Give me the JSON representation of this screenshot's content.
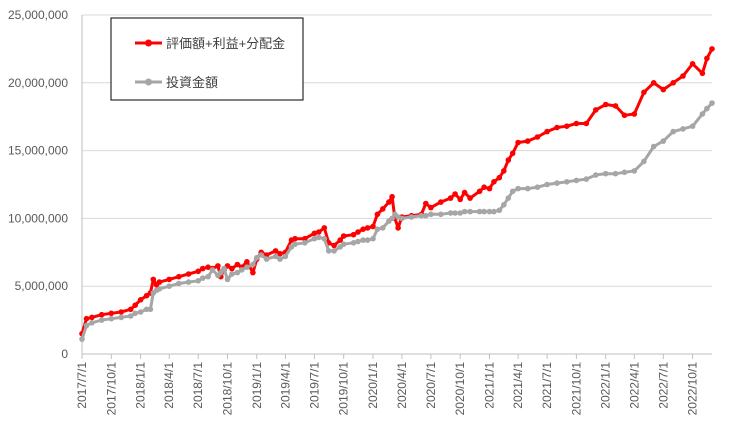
{
  "chart_data": {
    "type": "line",
    "title": "",
    "xlabel": "",
    "ylabel": "",
    "ylim": [
      0,
      25000000
    ],
    "yticks": [
      0,
      5000000,
      10000000,
      15000000,
      20000000,
      25000000
    ],
    "ytick_labels": [
      "0",
      "5,000,000",
      "10,000,000",
      "15,000,000",
      "20,000,000",
      "25,000,000"
    ],
    "x_tick_labels": [
      "2017/7/1",
      "2017/10/1",
      "2018/1/1",
      "2018/4/1",
      "2018/7/1",
      "2018/10/1",
      "2019/1/1",
      "2019/4/1",
      "2019/7/1",
      "2019/10/1",
      "2020/1/1",
      "2020/4/1",
      "2020/7/1",
      "2020/10/1",
      "2021/1/1",
      "2021/4/1",
      "2021/7/1",
      "2021/10/1",
      "2022/1/1",
      "2022/4/1",
      "2022/7/1",
      "2022/10/1"
    ],
    "x_start": "2017/7/1",
    "x_end": "2022/12/1",
    "grid": true,
    "legend_position": "top-left",
    "colors": {
      "valuation": "#ff0000",
      "investment": "#a6a6a6"
    },
    "series": [
      {
        "name": "評価額+利益+分配金",
        "color": "#ff0000",
        "points": [
          [
            "2017/7/1",
            1500000
          ],
          [
            "2017/7/15",
            2600000
          ],
          [
            "2017/8/1",
            2700000
          ],
          [
            "2017/9/1",
            2900000
          ],
          [
            "2017/10/1",
            3000000
          ],
          [
            "2017/11/1",
            3100000
          ],
          [
            "2017/12/1",
            3300000
          ],
          [
            "2017/12/15",
            3600000
          ],
          [
            "2018/1/1",
            4000000
          ],
          [
            "2018/1/20",
            4300000
          ],
          [
            "2018/2/1",
            4500000
          ],
          [
            "2018/2/10",
            5500000
          ],
          [
            "2018/2/20",
            5100000
          ],
          [
            "2018/3/1",
            5300000
          ],
          [
            "2018/4/1",
            5500000
          ],
          [
            "2018/5/1",
            5700000
          ],
          [
            "2018/6/1",
            5900000
          ],
          [
            "2018/7/1",
            6100000
          ],
          [
            "2018/7/15",
            6300000
          ],
          [
            "2018/8/1",
            6400000
          ],
          [
            "2018/8/15",
            6300000
          ],
          [
            "2018/9/1",
            6500000
          ],
          [
            "2018/9/10",
            5700000
          ],
          [
            "2018/9/20",
            6200000
          ],
          [
            "2018/10/1",
            6500000
          ],
          [
            "2018/10/15",
            6300000
          ],
          [
            "2018/11/1",
            6600000
          ],
          [
            "2018/11/15",
            6400000
          ],
          [
            "2018/12/1",
            6800000
          ],
          [
            "2018/12/20",
            6000000
          ],
          [
            "2019/1/1",
            7000000
          ],
          [
            "2019/1/15",
            7500000
          ],
          [
            "2019/2/1",
            7300000
          ],
          [
            "2019/3/1",
            7600000
          ],
          [
            "2019/3/15",
            7400000
          ],
          [
            "2019/4/1",
            7500000
          ],
          [
            "2019/4/20",
            8400000
          ],
          [
            "2019/5/1",
            8500000
          ],
          [
            "2019/6/1",
            8500000
          ],
          [
            "2019/7/1",
            8900000
          ],
          [
            "2019/7/15",
            9000000
          ],
          [
            "2019/8/1",
            9300000
          ],
          [
            "2019/8/15",
            8200000
          ],
          [
            "2019/9/1",
            8000000
          ],
          [
            "2019/9/20",
            8400000
          ],
          [
            "2019/10/1",
            8700000
          ],
          [
            "2019/11/1",
            8800000
          ],
          [
            "2019/11/15",
            9000000
          ],
          [
            "2019/12/1",
            9200000
          ],
          [
            "2019/12/15",
            9300000
          ],
          [
            "2020/1/1",
            9400000
          ],
          [
            "2020/1/15",
            10300000
          ],
          [
            "2020/2/1",
            10700000
          ],
          [
            "2020/2/20",
            11200000
          ],
          [
            "2020/3/1",
            11600000
          ],
          [
            "2020/3/10",
            10000000
          ],
          [
            "2020/3/20",
            9300000
          ],
          [
            "2020/4/1",
            10100000
          ],
          [
            "2020/5/1",
            10200000
          ],
          [
            "2020/6/1",
            10300000
          ],
          [
            "2020/6/15",
            11100000
          ],
          [
            "2020/7/1",
            10800000
          ],
          [
            "2020/8/1",
            11200000
          ],
          [
            "2020/9/1",
            11500000
          ],
          [
            "2020/9/15",
            11800000
          ],
          [
            "2020/10/1",
            11400000
          ],
          [
            "2020/10/15",
            11900000
          ],
          [
            "2020/11/1",
            11500000
          ],
          [
            "2020/12/1",
            12000000
          ],
          [
            "2020/12/15",
            12300000
          ],
          [
            "2021/1/1",
            12200000
          ],
          [
            "2021/1/15",
            12700000
          ],
          [
            "2021/2/1",
            13000000
          ],
          [
            "2021/2/15",
            13500000
          ],
          [
            "2021/3/1",
            14300000
          ],
          [
            "2021/3/15",
            14800000
          ],
          [
            "2021/4/1",
            15600000
          ],
          [
            "2021/5/1",
            15700000
          ],
          [
            "2021/6/1",
            16000000
          ],
          [
            "2021/7/1",
            16400000
          ],
          [
            "2021/8/1",
            16700000
          ],
          [
            "2021/9/1",
            16800000
          ],
          [
            "2021/10/1",
            17000000
          ],
          [
            "2021/11/1",
            17000000
          ],
          [
            "2021/12/1",
            18000000
          ],
          [
            "2022/1/1",
            18400000
          ],
          [
            "2022/2/1",
            18300000
          ],
          [
            "2022/3/1",
            17600000
          ],
          [
            "2022/4/1",
            17700000
          ],
          [
            "2022/5/1",
            19300000
          ],
          [
            "2022/6/1",
            20000000
          ],
          [
            "2022/7/1",
            19500000
          ],
          [
            "2022/8/1",
            20000000
          ],
          [
            "2022/9/1",
            20500000
          ],
          [
            "2022/10/1",
            21400000
          ],
          [
            "2022/11/1",
            20700000
          ],
          [
            "2022/11/15",
            21800000
          ],
          [
            "2022/12/1",
            22500000
          ]
        ]
      },
      {
        "name": "投資金額",
        "color": "#a6a6a6",
        "points": [
          [
            "2017/7/1",
            1100000
          ],
          [
            "2017/7/15",
            2100000
          ],
          [
            "2017/8/1",
            2300000
          ],
          [
            "2017/9/1",
            2500000
          ],
          [
            "2017/10/1",
            2600000
          ],
          [
            "2017/11/1",
            2700000
          ],
          [
            "2017/12/1",
            2800000
          ],
          [
            "2017/12/15",
            3000000
          ],
          [
            "2018/1/1",
            3100000
          ],
          [
            "2018/1/20",
            3300000
          ],
          [
            "2018/2/1",
            3300000
          ],
          [
            "2018/2/10",
            4500000
          ],
          [
            "2018/2/20",
            4700000
          ],
          [
            "2018/3/1",
            4800000
          ],
          [
            "2018/4/1",
            5000000
          ],
          [
            "2018/5/1",
            5200000
          ],
          [
            "2018/6/1",
            5300000
          ],
          [
            "2018/7/1",
            5400000
          ],
          [
            "2018/7/15",
            5600000
          ],
          [
            "2018/8/1",
            5700000
          ],
          [
            "2018/8/15",
            6200000
          ],
          [
            "2018/9/1",
            5800000
          ],
          [
            "2018/9/10",
            6000000
          ],
          [
            "2018/9/20",
            6300000
          ],
          [
            "2018/10/1",
            5500000
          ],
          [
            "2018/10/15",
            5900000
          ],
          [
            "2018/11/1",
            6000000
          ],
          [
            "2018/11/15",
            6200000
          ],
          [
            "2018/12/1",
            6400000
          ],
          [
            "2018/12/20",
            6600000
          ],
          [
            "2019/1/1",
            7100000
          ],
          [
            "2019/1/15",
            7300000
          ],
          [
            "2019/2/1",
            7000000
          ],
          [
            "2019/3/1",
            7200000
          ],
          [
            "2019/3/15",
            7000000
          ],
          [
            "2019/4/1",
            7200000
          ],
          [
            "2019/4/20",
            7900000
          ],
          [
            "2019/5/1",
            8100000
          ],
          [
            "2019/6/1",
            8200000
          ],
          [
            "2019/7/1",
            8500000
          ],
          [
            "2019/7/15",
            8600000
          ],
          [
            "2019/8/1",
            8500000
          ],
          [
            "2019/8/15",
            7600000
          ],
          [
            "2019/9/1",
            7600000
          ],
          [
            "2019/9/20",
            7900000
          ],
          [
            "2019/10/1",
            8100000
          ],
          [
            "2019/11/1",
            8200000
          ],
          [
            "2019/11/15",
            8300000
          ],
          [
            "2019/12/1",
            8400000
          ],
          [
            "2019/12/15",
            8400000
          ],
          [
            "2020/1/1",
            8500000
          ],
          [
            "2020/1/15",
            9200000
          ],
          [
            "2020/2/1",
            9300000
          ],
          [
            "2020/2/20",
            9800000
          ],
          [
            "2020/3/1",
            10000000
          ],
          [
            "2020/3/10",
            10300000
          ],
          [
            "2020/3/20",
            10100000
          ],
          [
            "2020/4/1",
            10000000
          ],
          [
            "2020/5/1",
            10100000
          ],
          [
            "2020/6/1",
            10200000
          ],
          [
            "2020/6/15",
            10200000
          ],
          [
            "2020/7/1",
            10300000
          ],
          [
            "2020/8/1",
            10300000
          ],
          [
            "2020/9/1",
            10400000
          ],
          [
            "2020/9/15",
            10400000
          ],
          [
            "2020/10/1",
            10400000
          ],
          [
            "2020/10/15",
            10500000
          ],
          [
            "2020/11/1",
            10500000
          ],
          [
            "2020/12/1",
            10500000
          ],
          [
            "2020/12/15",
            10500000
          ],
          [
            "2021/1/1",
            10500000
          ],
          [
            "2021/1/15",
            10500000
          ],
          [
            "2021/2/1",
            10600000
          ],
          [
            "2021/2/15",
            11000000
          ],
          [
            "2021/3/1",
            11500000
          ],
          [
            "2021/3/15",
            12000000
          ],
          [
            "2021/4/1",
            12200000
          ],
          [
            "2021/5/1",
            12200000
          ],
          [
            "2021/6/1",
            12300000
          ],
          [
            "2021/7/1",
            12500000
          ],
          [
            "2021/8/1",
            12600000
          ],
          [
            "2021/9/1",
            12700000
          ],
          [
            "2021/10/1",
            12800000
          ],
          [
            "2021/11/1",
            12900000
          ],
          [
            "2021/12/1",
            13200000
          ],
          [
            "2022/1/1",
            13300000
          ],
          [
            "2022/2/1",
            13300000
          ],
          [
            "2022/3/1",
            13400000
          ],
          [
            "2022/4/1",
            13500000
          ],
          [
            "2022/5/1",
            14200000
          ],
          [
            "2022/6/1",
            15300000
          ],
          [
            "2022/7/1",
            15700000
          ],
          [
            "2022/8/1",
            16400000
          ],
          [
            "2022/9/1",
            16600000
          ],
          [
            "2022/10/1",
            16800000
          ],
          [
            "2022/11/1",
            17700000
          ],
          [
            "2022/11/15",
            18100000
          ],
          [
            "2022/12/1",
            18500000
          ]
        ]
      }
    ]
  }
}
